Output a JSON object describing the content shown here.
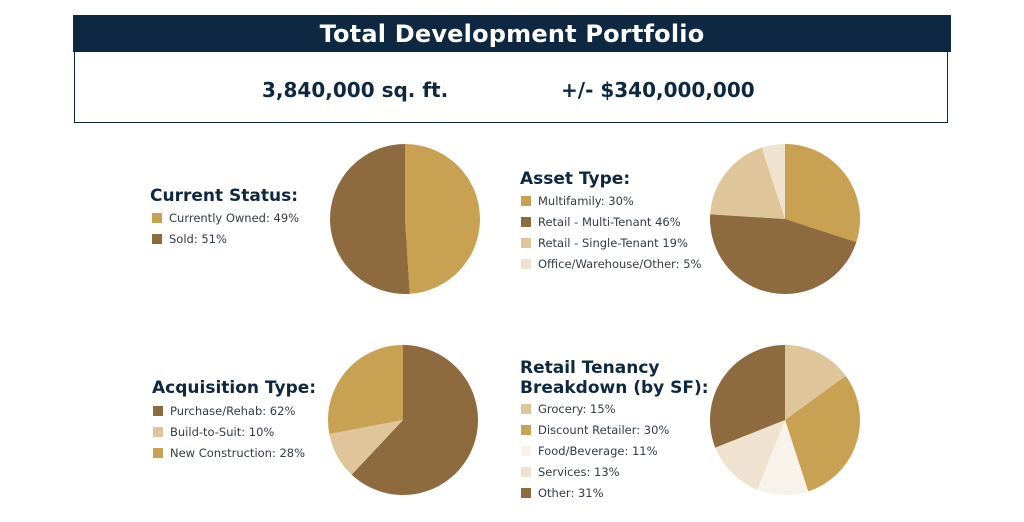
{
  "header": {
    "title": "Total Development Portfolio"
  },
  "summary": {
    "area": "3,840,000 sq. ft.",
    "value": "+/- $340,000,000"
  },
  "colors": {
    "navy": "#0d2840",
    "gold": "#c9a152",
    "brown": "#8e6a3f",
    "tan": "#dfc59a",
    "cream": "#efe3cf",
    "ivory": "#f8f3ea"
  },
  "chart_data": [
    {
      "id": "current_status",
      "type": "pie",
      "title": "Current Status:",
      "slices": [
        {
          "label": "Currently Owned: 49%",
          "value": 49,
          "color": "#c9a152"
        },
        {
          "label": "Sold: 51%",
          "value": 51,
          "color": "#8e6a3f"
        }
      ]
    },
    {
      "id": "asset_type",
      "type": "pie",
      "title": "Asset Type:",
      "slices": [
        {
          "label": "Multifamily: 30%",
          "value": 30,
          "color": "#c9a152"
        },
        {
          "label": "Retail - Multi-Tenant 46%",
          "value": 46,
          "color": "#8e6a3f"
        },
        {
          "label": "Retail - Single-Tenant 19%",
          "value": 19,
          "color": "#dfc59a"
        },
        {
          "label": "Office/Warehouse/Other: 5%",
          "value": 5,
          "color": "#efe3cf"
        }
      ]
    },
    {
      "id": "acquisition_type",
      "type": "pie",
      "title": "Acquisition Type:",
      "slices": [
        {
          "label": "Purchase/Rehab: 62%",
          "value": 62,
          "color": "#8e6a3f"
        },
        {
          "label": "Build-to-Suit: 10%",
          "value": 10,
          "color": "#dfc59a"
        },
        {
          "label": "New Construction: 28%",
          "value": 28,
          "color": "#c9a152"
        }
      ]
    },
    {
      "id": "retail_tenancy",
      "type": "pie",
      "title": "Retail Tenancy Breakdown (by SF):",
      "title_lines": [
        "Retail Tenancy",
        "Breakdown (by SF):"
      ],
      "slices": [
        {
          "label": "Grocery: 15%",
          "value": 15,
          "color": "#dfc59a"
        },
        {
          "label": "Discount Retailer: 30%",
          "value": 30,
          "color": "#c9a152"
        },
        {
          "label": "Food/Beverage: 11%",
          "value": 11,
          "color": "#f8f3ea"
        },
        {
          "label": "Services: 13%",
          "value": 13,
          "color": "#efe3cf"
        },
        {
          "label": "Other: 31%",
          "value": 31,
          "color": "#8e6a3f"
        }
      ]
    }
  ]
}
